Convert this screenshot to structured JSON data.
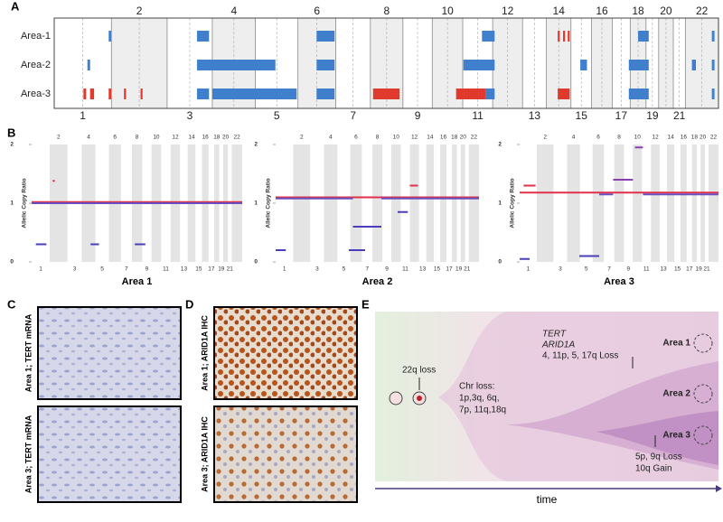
{
  "panels": [
    "A",
    "B",
    "C",
    "D",
    "E"
  ],
  "genome": {
    "xlim": [
      0,
      100
    ],
    "labels": [
      "1",
      "2",
      "3",
      "4",
      "5",
      "6",
      "7",
      "8",
      "9",
      "10",
      "11",
      "12",
      "13",
      "14",
      "15",
      "16",
      "17",
      "18",
      "19",
      "20",
      "21",
      "22"
    ],
    "starts": [
      0,
      8.6,
      17,
      23.8,
      30.3,
      36.7,
      42.4,
      47.6,
      52.5,
      56.9,
      61.5,
      66,
      70.5,
      74.1,
      77.8,
      80.9,
      84,
      86.7,
      89.1,
      91,
      93.2,
      95
    ]
  },
  "copy_number": {
    "rows": [
      {
        "name": "Area-1",
        "segments": [
          {
            "range": [
              8.2,
              8.6
            ],
            "color": "#3f7fcb"
          },
          {
            "range": [
              21.5,
              23.3
            ],
            "color": "#3f7fcb"
          },
          {
            "range": [
              39.5,
              42.2
            ],
            "color": "#3f7fcb"
          },
          {
            "range": [
              64.4,
              66.3
            ],
            "color": "#3f7fcb"
          },
          {
            "range": [
              75.8,
              76.1
            ],
            "color": "#e03a2f"
          },
          {
            "range": [
              76.6,
              76.9
            ],
            "color": "#e03a2f"
          },
          {
            "range": [
              77.3,
              77.6
            ],
            "color": "#e03a2f"
          },
          {
            "range": [
              87.9,
              89.5
            ],
            "color": "#3f7fcb"
          },
          {
            "range": [
              99,
              99.4
            ],
            "color": "#3f7fcb"
          }
        ]
      },
      {
        "name": "Area-2",
        "segments": [
          {
            "range": [
              5,
              5.4
            ],
            "color": "#3f7fcb"
          },
          {
            "range": [
              21.5,
              33.3
            ],
            "color": "#3f7fcb"
          },
          {
            "range": [
              39.5,
              42.2
            ],
            "color": "#3f7fcb"
          },
          {
            "range": [
              61.6,
              66.3
            ],
            "color": "#3f7fcb"
          },
          {
            "range": [
              79.2,
              80.2
            ],
            "color": "#3f7fcb"
          },
          {
            "range": [
              86.5,
              89.5
            ],
            "color": "#3f7fcb"
          },
          {
            "range": [
              96,
              96.6
            ],
            "color": "#3f7fcb"
          },
          {
            "range": [
              99,
              99.4
            ],
            "color": "#3f7fcb"
          }
        ]
      },
      {
        "name": "Area-3",
        "segments": [
          {
            "range": [
              4.4,
              4.8
            ],
            "color": "#e03a2f"
          },
          {
            "range": [
              5.4,
              6
            ],
            "color": "#e03a2f"
          },
          {
            "range": [
              8.2,
              8.6
            ],
            "color": "#e03a2f"
          },
          {
            "range": [
              10.5,
              10.8
            ],
            "color": "#e03a2f"
          },
          {
            "range": [
              13,
              13.3
            ],
            "color": "#e03a2f"
          },
          {
            "range": [
              21.5,
              23.3
            ],
            "color": "#3f7fcb"
          },
          {
            "range": [
              23.8,
              36.5
            ],
            "color": "#3f7fcb"
          },
          {
            "range": [
              39.5,
              42.2
            ],
            "color": "#3f7fcb"
          },
          {
            "range": [
              48,
              52
            ],
            "color": "#e03a2f"
          },
          {
            "range": [
              60.5,
              65
            ],
            "color": "#e03a2f"
          },
          {
            "range": [
              65,
              66.3
            ],
            "color": "#3f7fcb"
          },
          {
            "range": [
              75.8,
              77.6
            ],
            "color": "#e03a2f"
          },
          {
            "range": [
              86.5,
              89.5
            ],
            "color": "#3f7fcb"
          },
          {
            "range": [
              99,
              99.4
            ],
            "color": "#3f7fcb"
          }
        ]
      }
    ]
  },
  "allelic": [
    {
      "title": "Area 1",
      "ylabel": "Allelic Copy Ratio",
      "ylim": [
        0,
        2
      ],
      "yticks": [
        0,
        1,
        2
      ],
      "segments": [
        {
          "x": [
            0,
            100
          ],
          "y": 1.02,
          "color": "#e0304a"
        },
        {
          "x": [
            0,
            100
          ],
          "y": 1.0,
          "color": "#6a4fc0"
        },
        {
          "x": [
            2,
            7
          ],
          "y": 0.3,
          "color": "#4a3fb8"
        },
        {
          "x": [
            28,
            32
          ],
          "y": 0.3,
          "color": "#4a3fb8"
        },
        {
          "x": [
            49,
            54
          ],
          "y": 0.3,
          "color": "#4a3fb8"
        },
        {
          "x": [
            10,
            11
          ],
          "y": 1.38,
          "color": "#e0304a"
        }
      ]
    },
    {
      "title": "Area 2",
      "ylabel": "Allelic Copy Ratio",
      "ylim": [
        0,
        2
      ],
      "yticks": [
        0,
        1,
        2
      ],
      "segments": [
        {
          "x": [
            0,
            100
          ],
          "y": 1.1,
          "color": "#e0304a"
        },
        {
          "x": [
            0,
            38
          ],
          "y": 1.08,
          "color": "#6a4fc0"
        },
        {
          "x": [
            38,
            52
          ],
          "y": 0.6,
          "color": "#4a3fb8"
        },
        {
          "x": [
            0,
            5
          ],
          "y": 0.2,
          "color": "#4a3fb8"
        },
        {
          "x": [
            36,
            44
          ],
          "y": 0.2,
          "color": "#4a3fb8"
        },
        {
          "x": [
            52,
            100
          ],
          "y": 1.08,
          "color": "#6a4fc0"
        },
        {
          "x": [
            60,
            65
          ],
          "y": 0.85,
          "color": "#4a3fb8"
        },
        {
          "x": [
            66,
            70
          ],
          "y": 1.3,
          "color": "#e0304a"
        }
      ]
    },
    {
      "title": "Area 3",
      "ylabel": "Allelic Copy Ratio",
      "ylim": [
        0,
        2
      ],
      "yticks": [
        0,
        1,
        2
      ],
      "segments": [
        {
          "x": [
            0,
            100
          ],
          "y": 1.18,
          "color": "#e0304a"
        },
        {
          "x": [
            0,
            5
          ],
          "y": 0.05,
          "color": "#4a3fb8"
        },
        {
          "x": [
            30,
            40
          ],
          "y": 0.1,
          "color": "#4a3fb8"
        },
        {
          "x": [
            47,
            57
          ],
          "y": 1.4,
          "color": "#8a3fb0"
        },
        {
          "x": [
            58,
            62
          ],
          "y": 1.95,
          "color": "#8a3fb0"
        },
        {
          "x": [
            40,
            47
          ],
          "y": 1.15,
          "color": "#6a4fc0"
        },
        {
          "x": [
            62,
            100
          ],
          "y": 1.15,
          "color": "#6a4fc0"
        },
        {
          "x": [
            2,
            8
          ],
          "y": 1.3,
          "color": "#e0304a"
        }
      ]
    }
  ],
  "images": [
    {
      "label": "Area 1; TERT mRNA"
    },
    {
      "label": "Area 3; TERT mRNA"
    },
    {
      "label": "Area 1; ARID1A IHC"
    },
    {
      "label": "Area 3; ARID1A IHC"
    }
  ],
  "evolution": {
    "early": "22q loss",
    "chr_loss": [
      "Chr loss:",
      "1p,3q, 6q,",
      "7p, 11q,18q"
    ],
    "mid": [
      "TERT",
      "ARID1A",
      "4, 11p, 5, 17q Loss"
    ],
    "late": [
      "5p, 9q Loss",
      "10q Gain"
    ],
    "areas": [
      "Area 1",
      "Area 2",
      "Area 3"
    ],
    "axis": "time"
  }
}
